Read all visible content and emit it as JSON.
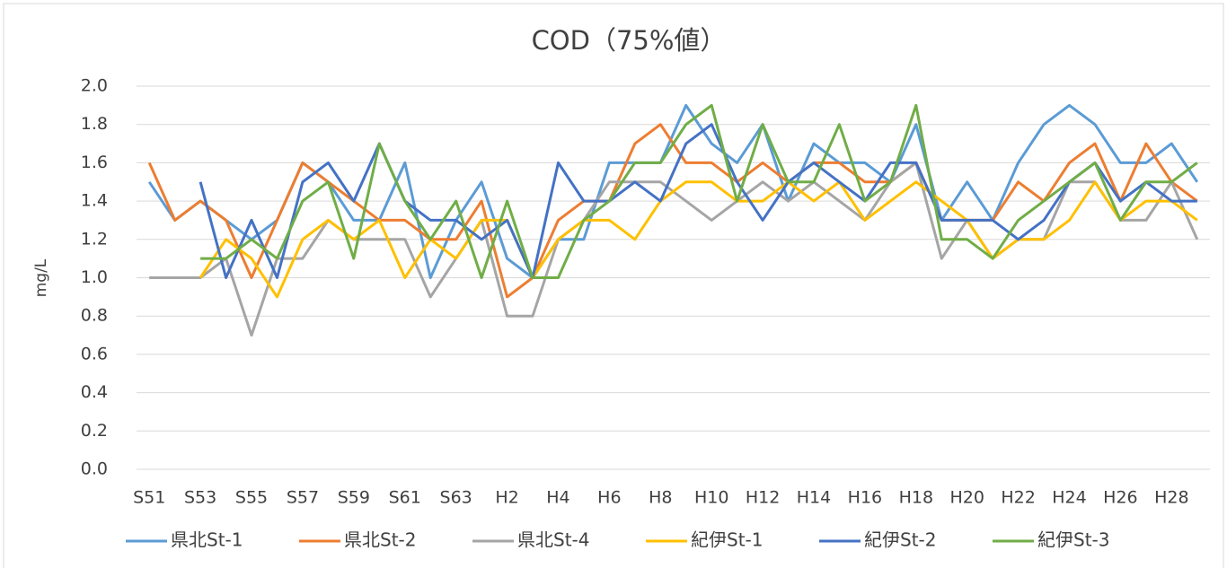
{
  "chart_data": {
    "type": "line",
    "title": "COD（75%値）",
    "y_label": "mg/L",
    "categories": [
      "S51",
      null,
      "S53",
      null,
      "S55",
      null,
      "S57",
      null,
      "S59",
      null,
      "S61",
      null,
      "S63",
      null,
      "H2",
      null,
      "H4",
      null,
      "H6",
      null,
      "H8",
      null,
      "H10",
      null,
      "H12",
      null,
      "H14",
      null,
      "H16",
      null,
      "H18",
      null,
      "H20",
      null,
      "H22",
      null,
      "H24",
      null,
      "H26",
      null,
      "H28",
      null
    ],
    "ylim": [
      0,
      2
    ],
    "yticks": [
      {
        "value": 0,
        "label": "0.0"
      },
      {
        "value": 0.2,
        "label": "0.2"
      },
      {
        "value": 0.4,
        "label": "0.4"
      },
      {
        "value": 0.6,
        "label": "0.6"
      },
      {
        "value": 0.8,
        "label": "0.8"
      },
      {
        "value": 1,
        "label": "1.0"
      },
      {
        "value": 1.2,
        "label": "1.2"
      },
      {
        "value": 1.4,
        "label": "1.4"
      },
      {
        "value": 1.6,
        "label": "1.6"
      },
      {
        "value": 1.8,
        "label": "1.8"
      },
      {
        "value": 2,
        "label": "2.0"
      }
    ],
    "grid": true,
    "legend": "bottom",
    "series": [
      {
        "name": "県北St-1",
        "color": "#5b9bd5",
        "values": [
          1.5,
          1.3,
          1.4,
          1.3,
          1.2,
          1.3,
          1.6,
          1.5,
          1.3,
          1.3,
          1.6,
          1.0,
          1.3,
          1.5,
          1.1,
          1.0,
          1.2,
          1.2,
          1.6,
          1.6,
          1.6,
          1.9,
          1.7,
          1.6,
          1.8,
          1.4,
          1.7,
          1.6,
          1.6,
          1.5,
          1.8,
          1.3,
          1.5,
          1.3,
          1.6,
          1.8,
          1.9,
          1.8,
          1.6,
          1.6,
          1.7,
          1.5
        ]
      },
      {
        "name": "県北St-2",
        "color": "#ed7d31",
        "values": [
          1.6,
          1.3,
          1.4,
          1.3,
          1.0,
          1.3,
          1.6,
          1.5,
          1.4,
          1.3,
          1.3,
          1.2,
          1.2,
          1.4,
          0.9,
          1.0,
          1.3,
          1.4,
          1.4,
          1.7,
          1.8,
          1.6,
          1.6,
          1.5,
          1.6,
          1.5,
          1.6,
          1.6,
          1.5,
          1.5,
          1.6,
          1.3,
          1.3,
          1.3,
          1.5,
          1.4,
          1.6,
          1.7,
          1.4,
          1.7,
          1.5,
          1.4
        ]
      },
      {
        "name": "県北St-4",
        "color": "#a5a5a5",
        "values": [
          1.0,
          1.0,
          1.0,
          1.1,
          0.7,
          1.1,
          1.1,
          1.3,
          1.2,
          1.2,
          1.2,
          0.9,
          1.1,
          1.3,
          0.8,
          0.8,
          1.2,
          1.3,
          1.5,
          1.5,
          1.5,
          1.4,
          1.3,
          1.4,
          1.5,
          1.4,
          1.5,
          1.4,
          1.3,
          1.5,
          1.6,
          1.1,
          1.3,
          1.1,
          1.2,
          1.2,
          1.5,
          1.5,
          1.3,
          1.3,
          1.5,
          1.2
        ]
      },
      {
        "name": "紀伊St-1",
        "color": "#ffc000",
        "values": [
          null,
          null,
          1.0,
          1.2,
          1.1,
          0.9,
          1.2,
          1.3,
          1.2,
          1.3,
          1.0,
          1.2,
          1.1,
          1.3,
          1.3,
          1.0,
          1.2,
          1.3,
          1.3,
          1.2,
          1.4,
          1.5,
          1.5,
          1.4,
          1.4,
          1.5,
          1.4,
          1.5,
          1.3,
          1.4,
          1.5,
          1.4,
          1.3,
          1.1,
          1.2,
          1.2,
          1.3,
          1.5,
          1.3,
          1.4,
          1.4,
          1.3
        ]
      },
      {
        "name": "紀伊St-2",
        "color": "#4472c4",
        "values": [
          null,
          null,
          1.5,
          1.0,
          1.3,
          1.0,
          1.5,
          1.6,
          1.4,
          1.7,
          1.4,
          1.3,
          1.3,
          1.2,
          1.3,
          1.0,
          1.6,
          1.4,
          1.4,
          1.5,
          1.4,
          1.7,
          1.8,
          1.5,
          1.3,
          1.5,
          1.6,
          1.5,
          1.4,
          1.6,
          1.6,
          1.3,
          1.3,
          1.3,
          1.2,
          1.3,
          1.5,
          1.6,
          1.4,
          1.5,
          1.4,
          1.4
        ]
      },
      {
        "name": "紀伊St-3",
        "color": "#70ad47",
        "values": [
          null,
          null,
          1.1,
          1.1,
          1.2,
          1.1,
          1.4,
          1.5,
          1.1,
          1.7,
          1.4,
          1.2,
          1.4,
          1.0,
          1.4,
          1.0,
          1.0,
          1.3,
          1.4,
          1.6,
          1.6,
          1.8,
          1.9,
          1.4,
          1.8,
          1.5,
          1.5,
          1.8,
          1.4,
          1.5,
          1.9,
          1.2,
          1.2,
          1.1,
          1.3,
          1.4,
          1.5,
          1.6,
          1.3,
          1.5,
          1.5,
          1.6
        ]
      }
    ]
  }
}
